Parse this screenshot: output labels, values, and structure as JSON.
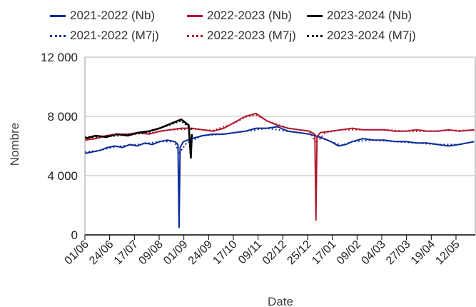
{
  "chart_data": {
    "type": "line",
    "xlabel": "Date",
    "ylabel": "Nombre",
    "ylim": [
      0,
      12000
    ],
    "yticks": [
      0,
      4000,
      8000,
      12000
    ],
    "ytick_labels": [
      "0",
      "4 000",
      "8 000",
      "12 000"
    ],
    "xtick_labels": [
      "01/06",
      "24/06",
      "17/07",
      "09/08",
      "01/09",
      "24/09",
      "17/10",
      "09/11",
      "02/12",
      "25/12",
      "17/01",
      "09/02",
      "04/03",
      "27/03",
      "19/04",
      "12/05"
    ],
    "grid": "horizontal",
    "legend_position": "top",
    "series": [
      {
        "name": "2021-2022 (Nb)",
        "color": "#0a2a9b",
        "style": "solid",
        "width": 2,
        "values": [
          [
            0,
            5500
          ],
          [
            7,
            5600
          ],
          [
            14,
            5700
          ],
          [
            21,
            5900
          ],
          [
            28,
            6000
          ],
          [
            35,
            5900
          ],
          [
            42,
            6100
          ],
          [
            49,
            6000
          ],
          [
            56,
            6200
          ],
          [
            63,
            6100
          ],
          [
            70,
            6300
          ],
          [
            77,
            6400
          ],
          [
            84,
            6300
          ],
          [
            87,
            6100
          ],
          [
            88,
            500
          ],
          [
            89,
            5900
          ],
          [
            92,
            6300
          ],
          [
            100,
            6500
          ],
          [
            110,
            6700
          ],
          [
            120,
            6800
          ],
          [
            130,
            6800
          ],
          [
            140,
            6900
          ],
          [
            150,
            7000
          ],
          [
            160,
            7200
          ],
          [
            170,
            7200
          ],
          [
            180,
            7300
          ],
          [
            190,
            7000
          ],
          [
            200,
            6900
          ],
          [
            210,
            6800
          ],
          [
            220,
            6600
          ],
          [
            230,
            6300
          ],
          [
            237,
            6000
          ],
          [
            244,
            6100
          ],
          [
            250,
            6300
          ],
          [
            260,
            6500
          ],
          [
            270,
            6400
          ],
          [
            280,
            6400
          ],
          [
            290,
            6300
          ],
          [
            300,
            6300
          ],
          [
            310,
            6200
          ],
          [
            320,
            6200
          ],
          [
            330,
            6100
          ],
          [
            340,
            6000
          ],
          [
            350,
            6100
          ],
          [
            364,
            6300
          ]
        ]
      },
      {
        "name": "2022-2023 (Nb)",
        "color": "#b01a2e",
        "style": "solid",
        "width": 2,
        "values": [
          [
            0,
            6400
          ],
          [
            10,
            6500
          ],
          [
            20,
            6700
          ],
          [
            30,
            6800
          ],
          [
            40,
            6800
          ],
          [
            50,
            6900
          ],
          [
            60,
            6800
          ],
          [
            70,
            7000
          ],
          [
            80,
            7100
          ],
          [
            90,
            7200
          ],
          [
            100,
            7200
          ],
          [
            110,
            7100
          ],
          [
            120,
            7000
          ],
          [
            130,
            7200
          ],
          [
            140,
            7600
          ],
          [
            150,
            8000
          ],
          [
            160,
            8200
          ],
          [
            170,
            7700
          ],
          [
            180,
            7400
          ],
          [
            190,
            7200
          ],
          [
            200,
            7100
          ],
          [
            210,
            7000
          ],
          [
            215,
            6800
          ],
          [
            216,
            1000
          ],
          [
            217,
            6600
          ],
          [
            220,
            6900
          ],
          [
            230,
            7000
          ],
          [
            240,
            7100
          ],
          [
            250,
            7200
          ],
          [
            260,
            7100
          ],
          [
            270,
            7100
          ],
          [
            280,
            7100
          ],
          [
            290,
            7000
          ],
          [
            300,
            7000
          ],
          [
            310,
            7100
          ],
          [
            320,
            7000
          ],
          [
            330,
            7000
          ],
          [
            340,
            7100
          ],
          [
            350,
            7000
          ],
          [
            364,
            7100
          ]
        ]
      },
      {
        "name": "2023-2024 (Nb)",
        "color": "#000000",
        "style": "solid",
        "width": 2.6,
        "values": [
          [
            0,
            6500
          ],
          [
            10,
            6700
          ],
          [
            20,
            6600
          ],
          [
            30,
            6800
          ],
          [
            40,
            6700
          ],
          [
            50,
            6900
          ],
          [
            60,
            7000
          ],
          [
            70,
            7200
          ],
          [
            80,
            7500
          ],
          [
            90,
            7800
          ],
          [
            97,
            7400
          ],
          [
            99,
            5200
          ],
          [
            100,
            6800
          ]
        ]
      },
      {
        "name": "2021-2022 (M7j)",
        "color": "#0a2a9b",
        "style": "dotted",
        "width": 2,
        "values": [
          [
            0,
            5600
          ],
          [
            14,
            5700
          ],
          [
            28,
            5950
          ],
          [
            42,
            6050
          ],
          [
            56,
            6150
          ],
          [
            70,
            6300
          ],
          [
            84,
            6300
          ],
          [
            88,
            5500
          ],
          [
            95,
            6200
          ],
          [
            110,
            6700
          ],
          [
            130,
            6800
          ],
          [
            150,
            7000
          ],
          [
            170,
            7200
          ],
          [
            190,
            7000
          ],
          [
            210,
            6800
          ],
          [
            230,
            6300
          ],
          [
            240,
            6050
          ],
          [
            250,
            6300
          ],
          [
            270,
            6400
          ],
          [
            290,
            6300
          ],
          [
            310,
            6200
          ],
          [
            330,
            6100
          ],
          [
            350,
            6100
          ],
          [
            364,
            6300
          ]
        ]
      },
      {
        "name": "2022-2023 (M7j)",
        "color": "#b01a2e",
        "style": "dotted",
        "width": 2,
        "values": [
          [
            0,
            6450
          ],
          [
            20,
            6700
          ],
          [
            40,
            6800
          ],
          [
            60,
            6850
          ],
          [
            80,
            7100
          ],
          [
            100,
            7150
          ],
          [
            120,
            7050
          ],
          [
            140,
            7550
          ],
          [
            150,
            7950
          ],
          [
            160,
            8100
          ],
          [
            170,
            7700
          ],
          [
            190,
            7200
          ],
          [
            210,
            7000
          ],
          [
            216,
            6200
          ],
          [
            225,
            6900
          ],
          [
            240,
            7100
          ],
          [
            260,
            7100
          ],
          [
            280,
            7100
          ],
          [
            300,
            7000
          ],
          [
            320,
            7000
          ],
          [
            340,
            7050
          ],
          [
            364,
            7050
          ]
        ]
      },
      {
        "name": "2023-2024 (M7j)",
        "color": "#000000",
        "style": "dotted",
        "width": 2.4,
        "values": [
          [
            0,
            6600
          ],
          [
            20,
            6650
          ],
          [
            40,
            6750
          ],
          [
            60,
            6950
          ],
          [
            80,
            7450
          ],
          [
            90,
            7700
          ],
          [
            100,
            7100
          ]
        ]
      }
    ]
  }
}
